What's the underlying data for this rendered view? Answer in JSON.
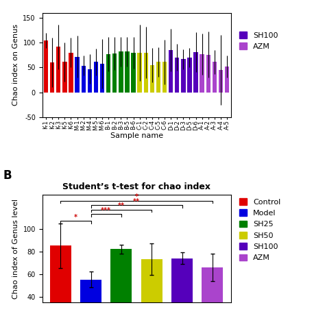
{
  "chart_data": [
    {
      "type": "bar",
      "categories": [
        "K-1",
        "K-2",
        "K-3",
        "K-5",
        "K-6",
        "M-1",
        "M-2",
        "M-4",
        "M-5",
        "M-6",
        "B-1",
        "B-2",
        "B-3",
        "B-5",
        "B-6",
        "C-1",
        "C-2",
        "C-4",
        "C-5",
        "C-6",
        "D-1",
        "D-2",
        "D-3",
        "D-5",
        "D-6",
        "A-1",
        "A-2",
        "A-3",
        "A-4",
        "A-5"
      ],
      "values": [
        105,
        60,
        92,
        61,
        80,
        72,
        54,
        47,
        61,
        58,
        77,
        78,
        82,
        82,
        80,
        80,
        80,
        55,
        61,
        61,
        85,
        70,
        67,
        70,
        81,
        77,
        76,
        61,
        45,
        52
      ],
      "errors": [
        15,
        50,
        45,
        40,
        30,
        42,
        20,
        30,
        27,
        50,
        35,
        33,
        30,
        30,
        32,
        57,
        52,
        35,
        30,
        45,
        43,
        27,
        20,
        20,
        40,
        42,
        46,
        24,
        70,
        22
      ],
      "colors": [
        "#e00000",
        "#e00000",
        "#e00000",
        "#e00000",
        "#e00000",
        "#0000e0",
        "#0000e0",
        "#0000e0",
        "#0000e0",
        "#0000e0",
        "#008000",
        "#008000",
        "#008000",
        "#008000",
        "#008000",
        "#cccc00",
        "#cccc00",
        "#cccc00",
        "#cccc00",
        "#cccc00",
        "#5500bb",
        "#5500bb",
        "#5500bb",
        "#5500bb",
        "#5500bb",
        "#aa44cc",
        "#aa44cc",
        "#aa44cc",
        "#aa44cc",
        "#aa44cc"
      ],
      "y_label": "Chao index on Genus",
      "x_label": "Sample name",
      "ylim": [
        -50,
        160
      ],
      "yticks": [
        -50,
        0,
        50,
        100,
        150
      ],
      "legend": "upper left",
      "legend_entries": [
        {
          "name": "SH100",
          "color": "#5500bb"
        },
        {
          "name": "AZM",
          "color": "#aa44cc"
        }
      ]
    },
    {
      "type": "bar",
      "title": "Student’s t-test for chao index",
      "panel_label": "B",
      "categories": [
        "Control",
        "Model",
        "SH25",
        "SH50",
        "SH100",
        "AZM"
      ],
      "values": [
        85,
        55,
        82,
        73,
        74,
        66
      ],
      "errors": [
        20,
        7,
        4,
        14,
        5,
        12
      ],
      "colors": [
        "#e00000",
        "#0000e0",
        "#008000",
        "#cccc00",
        "#5500bb",
        "#aa44cc"
      ],
      "y_label": "Chao index of Genus level",
      "ylim": [
        35,
        130
      ],
      "yticks": [
        40,
        60,
        80,
        100
      ],
      "tick_labels": "y",
      "legend": "upper left",
      "legend_entries": [
        {
          "name": "Control",
          "color": "#e00000"
        },
        {
          "name": "Model",
          "color": "#0000e0"
        },
        {
          "name": "SH25",
          "color": "#008000"
        },
        {
          "name": "SH50",
          "color": "#cccc00"
        },
        {
          "name": "SH100",
          "color": "#5500bb"
        },
        {
          "name": "AZM",
          "color": "#aa44cc"
        }
      ],
      "annotations": [
        {
          "x1": 0,
          "x2": 1,
          "y": 107,
          "label": "*",
          "color": "#cc0000"
        },
        {
          "x1": 1,
          "x2": 2,
          "y": 113,
          "label": "***",
          "color": "#cc0000"
        },
        {
          "x1": 1,
          "x2": 3,
          "y": 117,
          "label": "**",
          "color": "#cc0000"
        },
        {
          "x1": 1,
          "x2": 4,
          "y": 121,
          "label": "**",
          "color": "#cc0000"
        },
        {
          "x1": 0,
          "x2": 5,
          "y": 125,
          "label": "*",
          "color": "#cc0000"
        }
      ]
    }
  ]
}
